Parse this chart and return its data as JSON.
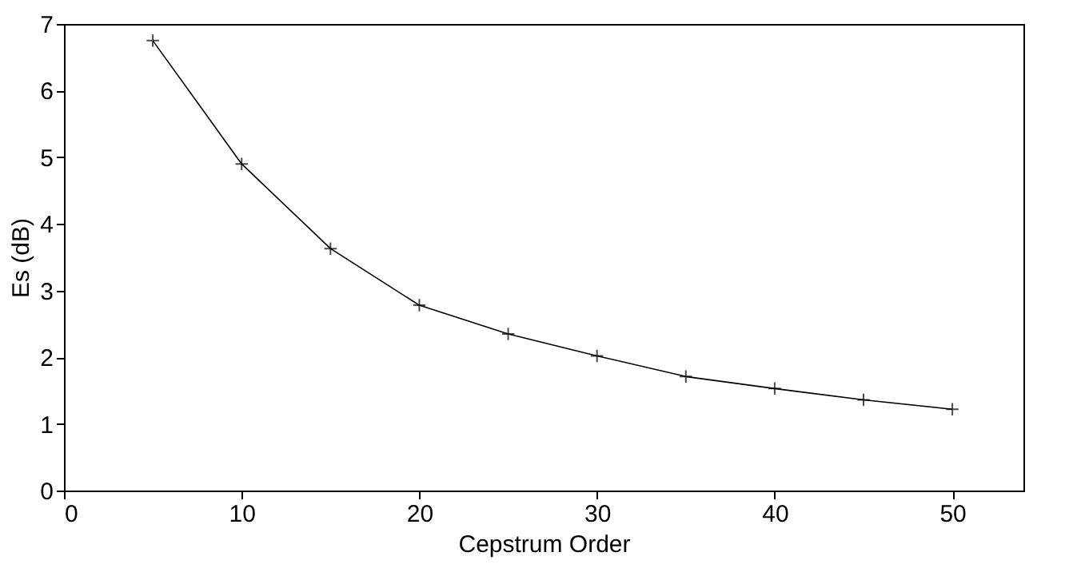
{
  "chart_data": {
    "type": "line",
    "xlabel": "Cepstrum Order",
    "ylabel": "Es (dB)",
    "x": [
      5,
      10,
      15,
      20,
      25,
      30,
      35,
      40,
      45,
      50
    ],
    "series": [
      {
        "color": "#000000",
        "values": [
          6.75,
          4.9,
          3.63,
          2.78,
          2.35,
          2.02,
          1.71,
          1.53,
          1.36,
          1.22
        ]
      }
    ],
    "xlim": [
      0,
      54
    ],
    "xticks": [
      0,
      10,
      20,
      30,
      40,
      50
    ],
    "ylim": [
      0,
      7
    ],
    "yticks": [
      0,
      1,
      2,
      3,
      4,
      5,
      6,
      7
    ],
    "grid": false,
    "legend": false,
    "marker": "cross",
    "line_style": "solid"
  }
}
